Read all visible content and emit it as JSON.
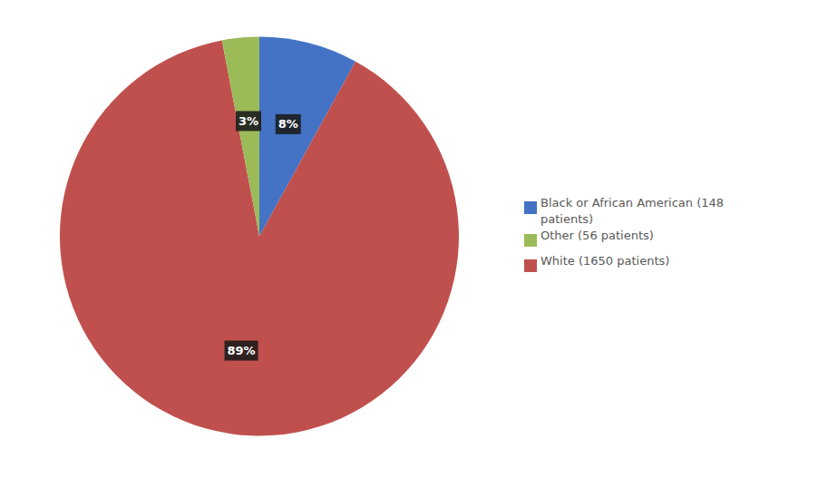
{
  "chart_data": {
    "type": "pie",
    "categories": [
      "Black or African American (148\npatients)",
      "White (1650 patients)",
      "Other (56 patients)"
    ],
    "values": [
      8,
      89,
      3
    ],
    "value_labels": [
      "8%",
      "89%",
      "3%"
    ],
    "colors": [
      "#4472C4",
      "#C0504D",
      "#9BBB59"
    ],
    "data_labels": true,
    "legend": "right"
  }
}
